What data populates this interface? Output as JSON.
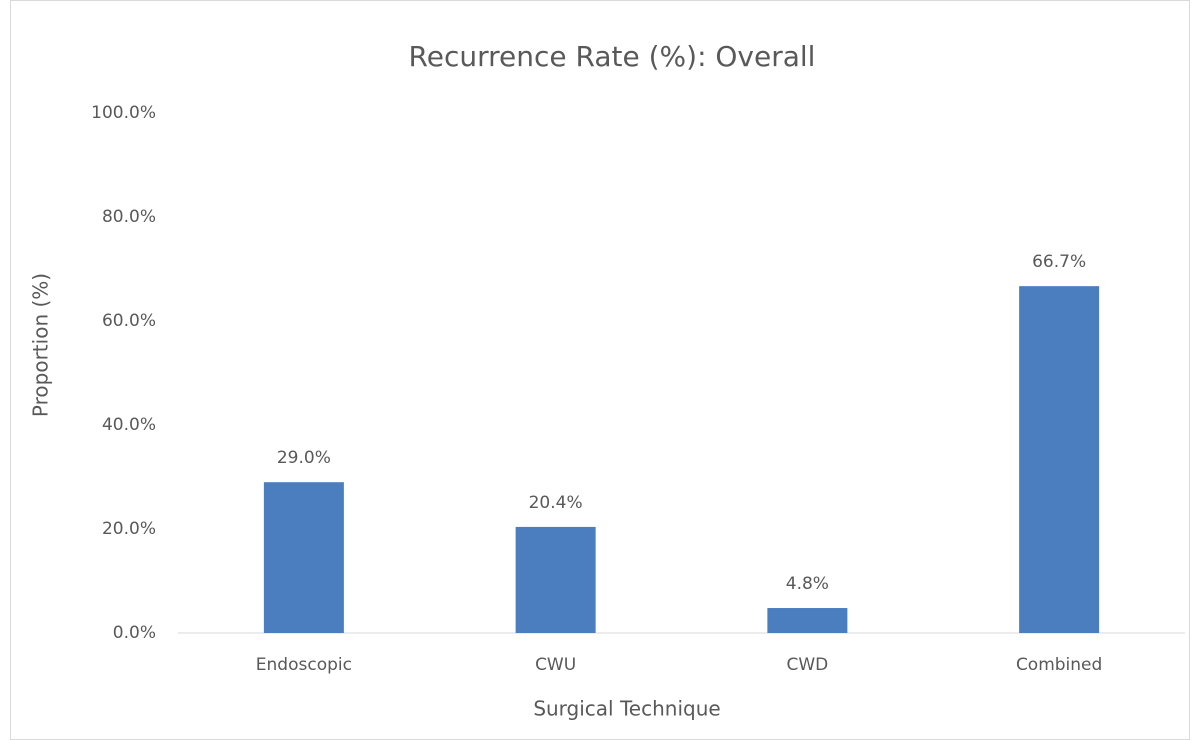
{
  "chart_data": {
    "type": "bar",
    "title": "Recurrence Rate (%): Overall",
    "x_label": "Surgical Technique",
    "y_label": "Proportion (%)",
    "categories": [
      "Endoscopic",
      "CWU",
      "CWD",
      "Combined"
    ],
    "values": [
      29.0,
      20.4,
      4.8,
      66.7
    ],
    "value_labels": [
      "29.0%",
      "20.4%",
      "4.8%",
      "66.7%"
    ],
    "color": "#4a7ebf",
    "ylim": [
      0,
      100
    ],
    "yticks": [
      {
        "value": 0,
        "label": "0.0%"
      },
      {
        "value": 20,
        "label": "20.0%"
      },
      {
        "value": 40,
        "label": "40.0%"
      },
      {
        "value": 60,
        "label": "60.0%"
      },
      {
        "value": 80,
        "label": "80.0%"
      },
      {
        "value": 100,
        "label": "100.0%"
      }
    ],
    "grid": false
  }
}
